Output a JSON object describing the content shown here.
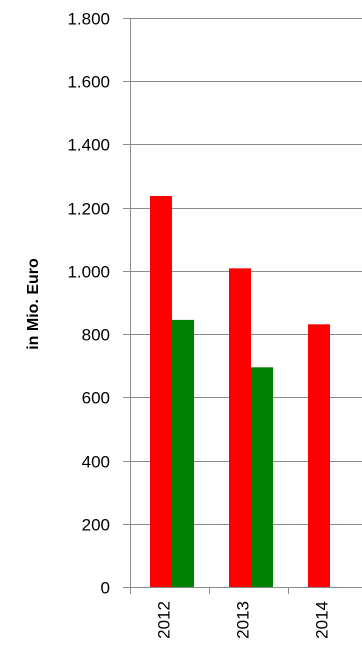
{
  "chart_data": {
    "type": "bar",
    "categories": [
      "2012",
      "2013",
      "2014"
    ],
    "series": [
      {
        "values": [
          1237,
          1008,
          831
        ],
        "color": "#ff0000"
      },
      {
        "values": [
          845,
          695,
          null
        ],
        "color": "#008000"
      }
    ],
    "ylabel": "in Mio. Euro",
    "ylim": [
      0,
      1800
    ],
    "yticks": [
      0,
      200,
      400,
      600,
      800,
      1000,
      1200,
      1400,
      1600,
      1800
    ],
    "ytick_labels": [
      "0",
      "200",
      "400",
      "600",
      "800",
      "1.000",
      "1.200",
      "1.400",
      "1.600",
      "1.800"
    ],
    "grid": true
  }
}
